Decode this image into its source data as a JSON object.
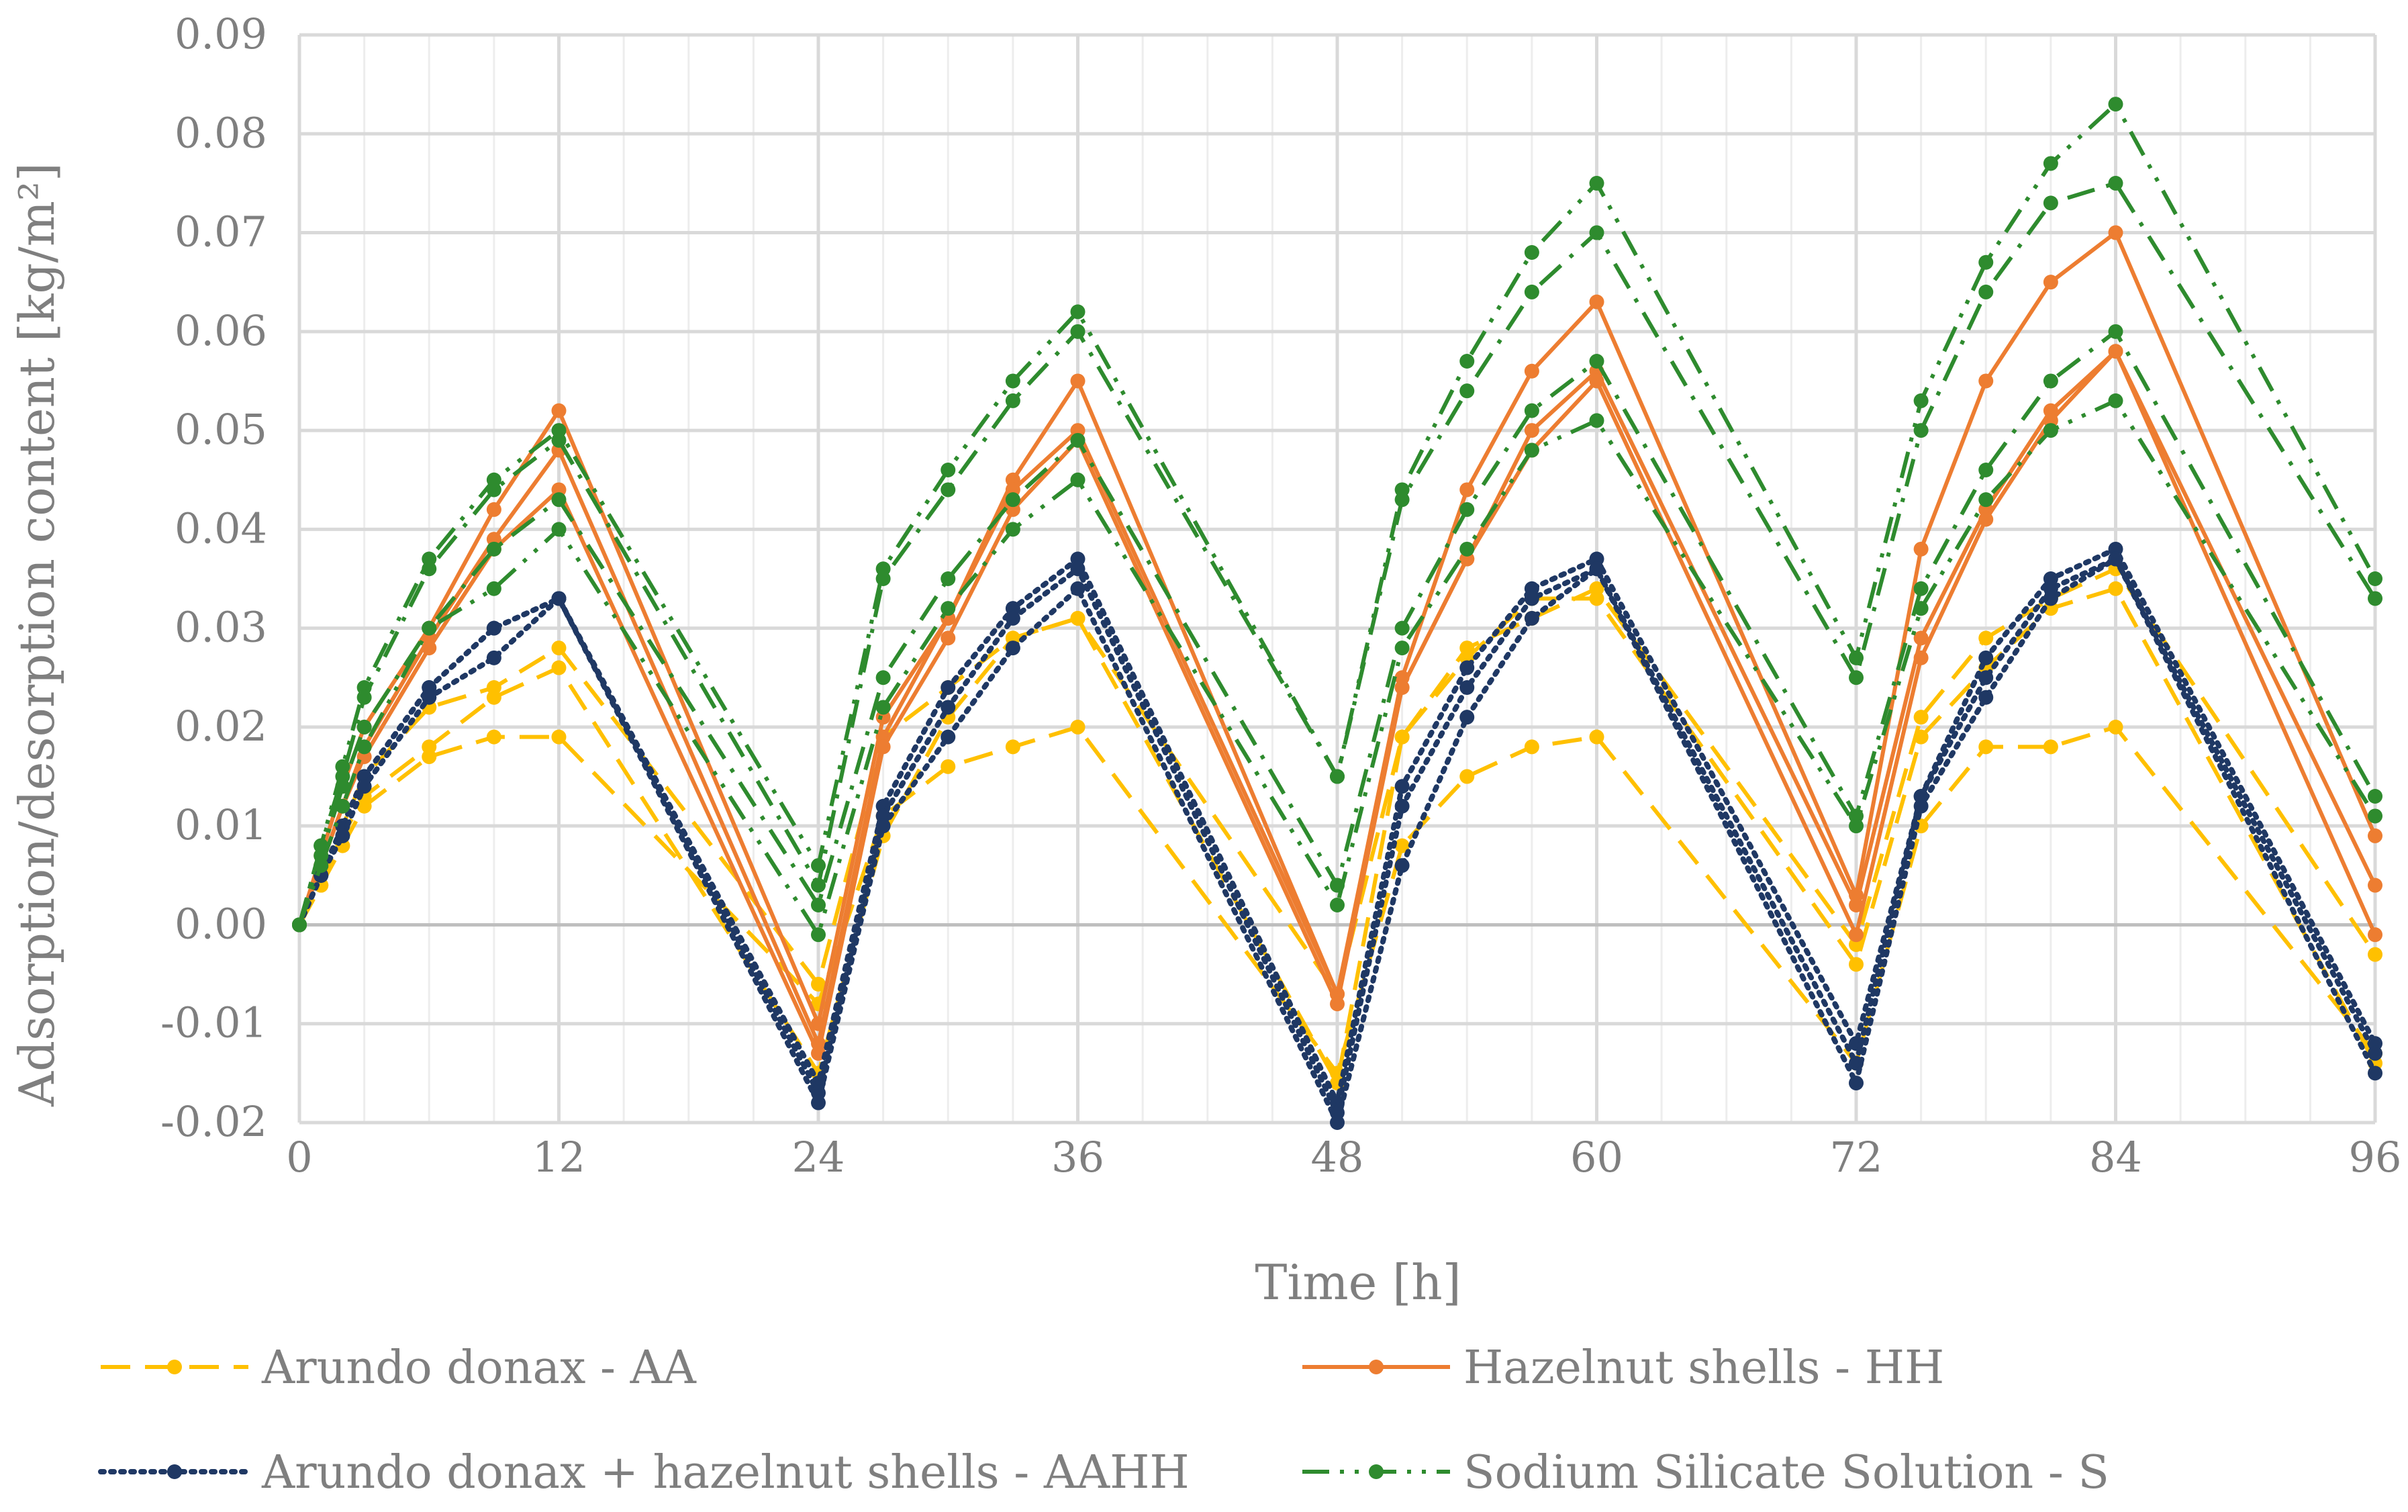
{
  "chart_data": {
    "type": "line",
    "title": "",
    "xlabel": "Time [h]",
    "ylabel": "Adsorption/desorption content [kg/m²]",
    "xlim": [
      0,
      96
    ],
    "ylim": [
      -0.02,
      0.09
    ],
    "x_major_ticks": [
      0,
      12,
      24,
      36,
      48,
      60,
      72,
      84,
      96
    ],
    "x_tick_labels": [
      "0",
      "12",
      "24",
      "36",
      "48",
      "60",
      "72",
      "84",
      "96"
    ],
    "y_ticks": [
      -0.02,
      -0.01,
      0,
      0.01,
      0.02,
      0.03,
      0.04,
      0.05,
      0.06,
      0.07,
      0.08,
      0.09
    ],
    "y_tick_labels": [
      "-0.02",
      "-0.01",
      "0.00",
      "0.01",
      "0.02",
      "0.03",
      "0.04",
      "0.05",
      "0.06",
      "0.07",
      "0.08",
      "0.09"
    ],
    "grid": true,
    "x": [
      0,
      1,
      2,
      3,
      6,
      9,
      12,
      24,
      27,
      30,
      33,
      36,
      48,
      51,
      54,
      57,
      60,
      72,
      75,
      78,
      81,
      84,
      96
    ],
    "legend_position": "bottom",
    "series": [
      {
        "name": "Arundo donax - AA",
        "group": "AA",
        "color": "#FFC000",
        "dash": "dashed",
        "values": [
          0,
          0.005,
          0.01,
          0.015,
          0.022,
          0.024,
          0.028,
          -0.006,
          0.019,
          0.024,
          0.029,
          0.031,
          -0.007,
          0.019,
          0.028,
          0.031,
          0.034,
          -0.002,
          0.021,
          0.029,
          0.033,
          0.036,
          -0.003
        ]
      },
      {
        "name": "",
        "group": "AA",
        "color": "#FFC000",
        "dash": "dashed",
        "values": [
          0,
          0.004,
          0.009,
          0.013,
          0.018,
          0.023,
          0.026,
          -0.015,
          0.009,
          0.021,
          0.029,
          0.031,
          -0.016,
          0.019,
          0.027,
          0.033,
          0.033,
          -0.004,
          0.019,
          0.026,
          0.032,
          0.034,
          -0.014
        ]
      },
      {
        "name": "",
        "group": "AA",
        "color": "#FFC000",
        "dash": "dashed",
        "values": [
          0,
          0.004,
          0.008,
          0.012,
          0.017,
          0.019,
          0.019,
          -0.008,
          0.011,
          0.016,
          0.018,
          0.02,
          -0.015,
          0.008,
          0.015,
          0.018,
          0.019,
          -0.014,
          0.01,
          0.018,
          0.018,
          0.02,
          -0.013
        ]
      },
      {
        "name": "Hazelnut shells - HH",
        "group": "HH",
        "color": "#ED7D31",
        "dash": "solid",
        "values": [
          0,
          0.007,
          0.014,
          0.02,
          0.03,
          0.042,
          0.052,
          -0.01,
          0.021,
          0.031,
          0.045,
          0.055,
          -0.007,
          0.025,
          0.044,
          0.056,
          0.063,
          0.003,
          0.038,
          0.055,
          0.065,
          0.07,
          0.009
        ]
      },
      {
        "name": "",
        "group": "HH",
        "color": "#ED7D31",
        "dash": "solid",
        "values": [
          0,
          0.006,
          0.012,
          0.018,
          0.029,
          0.039,
          0.048,
          -0.012,
          0.019,
          0.031,
          0.044,
          0.05,
          -0.007,
          0.024,
          0.037,
          0.05,
          0.056,
          0.002,
          0.029,
          0.042,
          0.052,
          0.058,
          0.004
        ]
      },
      {
        "name": "",
        "group": "HH",
        "color": "#ED7D31",
        "dash": "solid",
        "values": [
          0,
          0.006,
          0.012,
          0.017,
          0.028,
          0.038,
          0.044,
          -0.013,
          0.018,
          0.029,
          0.042,
          0.049,
          -0.008,
          0.024,
          0.037,
          0.048,
          0.055,
          -0.001,
          0.027,
          0.041,
          0.051,
          0.058,
          -0.001
        ]
      },
      {
        "name": "Arundo donax + hazelnut shells - AAHH",
        "group": "AAHH",
        "color": "#1F3864",
        "dash": "dotted",
        "values": [
          0,
          0.005,
          0.01,
          0.015,
          0.024,
          0.03,
          0.033,
          -0.016,
          0.012,
          0.024,
          0.032,
          0.037,
          -0.018,
          0.014,
          0.026,
          0.034,
          0.037,
          -0.012,
          0.013,
          0.027,
          0.035,
          0.038,
          -0.012
        ]
      },
      {
        "name": "",
        "group": "AAHH",
        "color": "#1F3864",
        "dash": "dotted",
        "values": [
          0,
          0.005,
          0.01,
          0.015,
          0.024,
          0.03,
          0.033,
          -0.017,
          0.011,
          0.022,
          0.031,
          0.036,
          -0.019,
          0.012,
          0.024,
          0.033,
          0.036,
          -0.014,
          0.013,
          0.025,
          0.034,
          0.037,
          -0.013
        ]
      },
      {
        "name": "",
        "group": "AAHH",
        "color": "#1F3864",
        "dash": "dotted",
        "values": [
          0,
          0.005,
          0.009,
          0.014,
          0.023,
          0.027,
          0.033,
          -0.018,
          0.01,
          0.019,
          0.028,
          0.034,
          -0.02,
          0.006,
          0.021,
          0.031,
          0.036,
          -0.016,
          0.012,
          0.023,
          0.033,
          0.037,
          -0.015
        ]
      },
      {
        "name": "Sodium Silicate Solution - S",
        "group": "S",
        "color": "#2E8B2E",
        "dash": "dash-dot-dot",
        "values": [
          0,
          0.008,
          0.016,
          0.024,
          0.037,
          0.045,
          0.05,
          0.006,
          0.036,
          0.046,
          0.055,
          0.062,
          0.015,
          0.044,
          0.057,
          0.068,
          0.075,
          0.027,
          0.053,
          0.067,
          0.077,
          0.083,
          0.035
        ]
      },
      {
        "name": "",
        "group": "S",
        "color": "#2E8B2E",
        "dash": "dash-dot",
        "values": [
          0,
          0.008,
          0.015,
          0.023,
          0.036,
          0.044,
          0.049,
          0.004,
          0.035,
          0.044,
          0.053,
          0.06,
          0.015,
          0.043,
          0.054,
          0.064,
          0.07,
          0.025,
          0.05,
          0.064,
          0.073,
          0.075,
          0.033
        ]
      },
      {
        "name": "",
        "group": "S",
        "color": "#2E8B2E",
        "dash": "dash-dot",
        "values": [
          0,
          0.007,
          0.014,
          0.02,
          0.03,
          0.038,
          0.043,
          0.002,
          0.025,
          0.035,
          0.043,
          0.049,
          0.004,
          0.03,
          0.042,
          0.052,
          0.057,
          0.011,
          0.034,
          0.046,
          0.055,
          0.06,
          0.013
        ]
      },
      {
        "name": "",
        "group": "S",
        "color": "#2E8B2E",
        "dash": "dash-dot-dot",
        "values": [
          0,
          0.006,
          0.012,
          0.018,
          0.03,
          0.034,
          0.04,
          -0.001,
          0.022,
          0.032,
          0.04,
          0.045,
          0.002,
          0.028,
          0.038,
          0.048,
          0.051,
          0.01,
          0.032,
          0.043,
          0.05,
          0.053,
          0.011
        ]
      }
    ],
    "legend": [
      {
        "label": "Arundo donax - AA",
        "color": "#FFC000",
        "dash": "dashed"
      },
      {
        "label": "Hazelnut shells - HH",
        "color": "#ED7D31",
        "dash": "solid"
      },
      {
        "label": "Arundo donax + hazelnut shells - AAHH",
        "color": "#1F3864",
        "dash": "dotted"
      },
      {
        "label": "Sodium Silicate Solution - S",
        "color": "#2E8B2E",
        "dash": "dash-dot-dot"
      }
    ]
  }
}
